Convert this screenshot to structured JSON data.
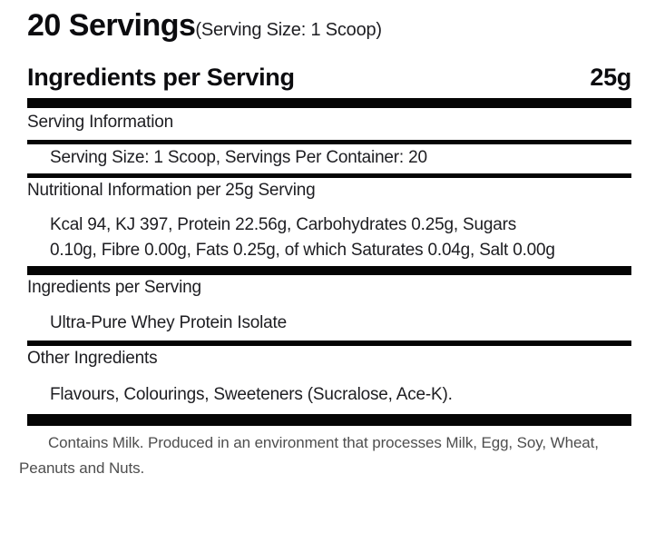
{
  "label": {
    "servings_title": "20 Servings",
    "serving_size_note": "(Serving Size: 1 Scoop)",
    "ingredients_heading": "Ingredients per Serving",
    "amount_per_serving": "25g",
    "sections": [
      {
        "heading": "Serving Information",
        "body": "Serving Size: 1 Scoop, Servings Per Container: 20"
      },
      {
        "heading": "Nutritional Information per 25g Serving",
        "body": "Kcal 94, KJ 397, Protein 22.56g, Carbohydrates 0.25g, Sugars 0.10g, Fibre 0.00g, Fats 0.25g, of which Saturates 0.04g, Salt 0.00g"
      },
      {
        "heading": "Ingredients per Serving",
        "body": "Ultra-Pure Whey Protein Isolate"
      },
      {
        "heading": "Other Ingredients",
        "body": "Flavours, Colourings, Sweeteners (Sucralose, Ace-K)."
      }
    ],
    "allergen_note": "Contains Milk. Produced in an environment that processes Milk, Egg, Soy, Wheat, Peanuts and Nuts.",
    "colors": {
      "text": "#1d1d21",
      "title": "#0c0c0f",
      "bar": "#050505",
      "muted": "#4e4e4e",
      "background": "#ffffff"
    }
  }
}
